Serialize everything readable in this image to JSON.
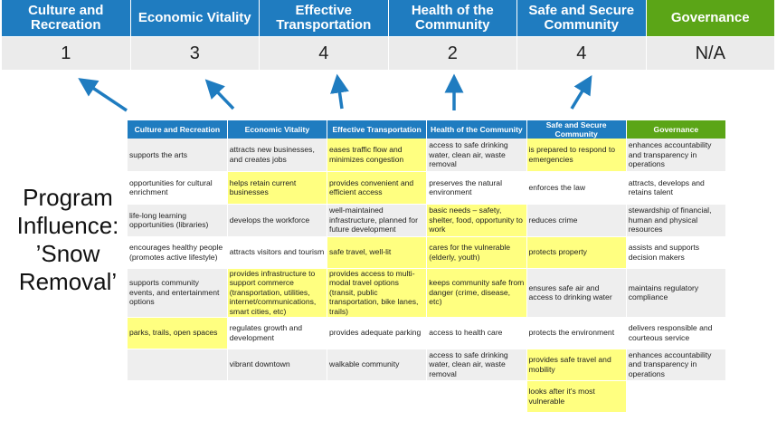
{
  "summary": {
    "columns": [
      {
        "label": "Culture and Recreation",
        "score": "1"
      },
      {
        "label": "Economic Vitality",
        "score": "3"
      },
      {
        "label": "Effective Transportation",
        "score": "4"
      },
      {
        "label": "Health of the Community",
        "score": "2"
      },
      {
        "label": "Safe and Secure Community",
        "score": "4"
      },
      {
        "label": "Governance",
        "score": "N/A"
      }
    ]
  },
  "colors": {
    "blue": "#1f7cc0",
    "green": "#5ba517",
    "highlight": "#ffff80"
  },
  "side_label": "Program Influence: ’Snow Removal’",
  "table": {
    "headers": [
      "Culture and Recreation",
      "Economic Vitality",
      "Effective Transportation",
      "Health of the Community",
      "Safe and Secure Community",
      "Governance"
    ],
    "rows": [
      [
        {
          "t": "supports the arts"
        },
        {
          "t": "attracts new businesses, and creates jobs"
        },
        {
          "t": "eases traffic flow and minimizes congestion",
          "h": true
        },
        {
          "t": "access to safe drinking water, clean air, waste removal"
        },
        {
          "t": "is prepared to respond to emergencies",
          "h": true
        },
        {
          "t": "enhances accountability and transparency in operations"
        }
      ],
      [
        {
          "t": "opportunities for cultural enrichment"
        },
        {
          "t": "helps retain current businesses",
          "h": true
        },
        {
          "t": "provides convenient and efficient access",
          "h": true
        },
        {
          "t": "preserves the natural environment"
        },
        {
          "t": "enforces the law"
        },
        {
          "t": "attracts, develops and retains talent"
        }
      ],
      [
        {
          "t": "life-long learning opportunities (libraries)"
        },
        {
          "t": "develops the workforce"
        },
        {
          "t": "well-maintained infrastructure, planned for future development"
        },
        {
          "t": "basic needs – safety, shelter, food, opportunity to work",
          "h": true
        },
        {
          "t": "reduces crime"
        },
        {
          "t": "stewardship of financial, human and physical resources"
        }
      ],
      [
        {
          "t": "encourages healthy people (promotes active lifestyle)"
        },
        {
          "t": "attracts visitors and tourism"
        },
        {
          "t": "safe travel, well-lit",
          "h": true
        },
        {
          "t": "cares for the vulnerable (elderly, youth)",
          "h": true
        },
        {
          "t": "protects property",
          "h": true
        },
        {
          "t": "assists and supports decision makers"
        }
      ],
      [
        {
          "t": "supports community events, and entertainment options"
        },
        {
          "t": "provides infrastructure to support commerce (transportation, utilities, internet/communications, smart cities, etc)",
          "h": true
        },
        {
          "t": "provides access to multi-modal travel options (transit, public transportation, bike lanes, trails)",
          "h": true
        },
        {
          "t": "keeps community safe from danger (crime, disease, etc)",
          "h": true
        },
        {
          "t": "ensures safe air and access to drinking water"
        },
        {
          "t": "maintains regulatory compliance"
        }
      ],
      [
        {
          "t": "parks, trails, open spaces",
          "h": true
        },
        {
          "t": "regulates growth and development"
        },
        {
          "t": "provides adequate parking"
        },
        {
          "t": "access to health care"
        },
        {
          "t": "protects the environment"
        },
        {
          "t": "delivers responsible and courteous service"
        }
      ],
      [
        {
          "t": ""
        },
        {
          "t": "vibrant downtown"
        },
        {
          "t": "walkable community"
        },
        {
          "t": "access to safe drinking water, clean air, waste removal"
        },
        {
          "t": "provides safe travel and mobility",
          "h": true
        },
        {
          "t": "enhances accountability and transparency in operations"
        }
      ],
      [
        {
          "t": ""
        },
        {
          "t": ""
        },
        {
          "t": ""
        },
        {
          "t": ""
        },
        {
          "t": "looks after it's most vulnerable",
          "h": true
        },
        {
          "t": ""
        }
      ]
    ]
  }
}
